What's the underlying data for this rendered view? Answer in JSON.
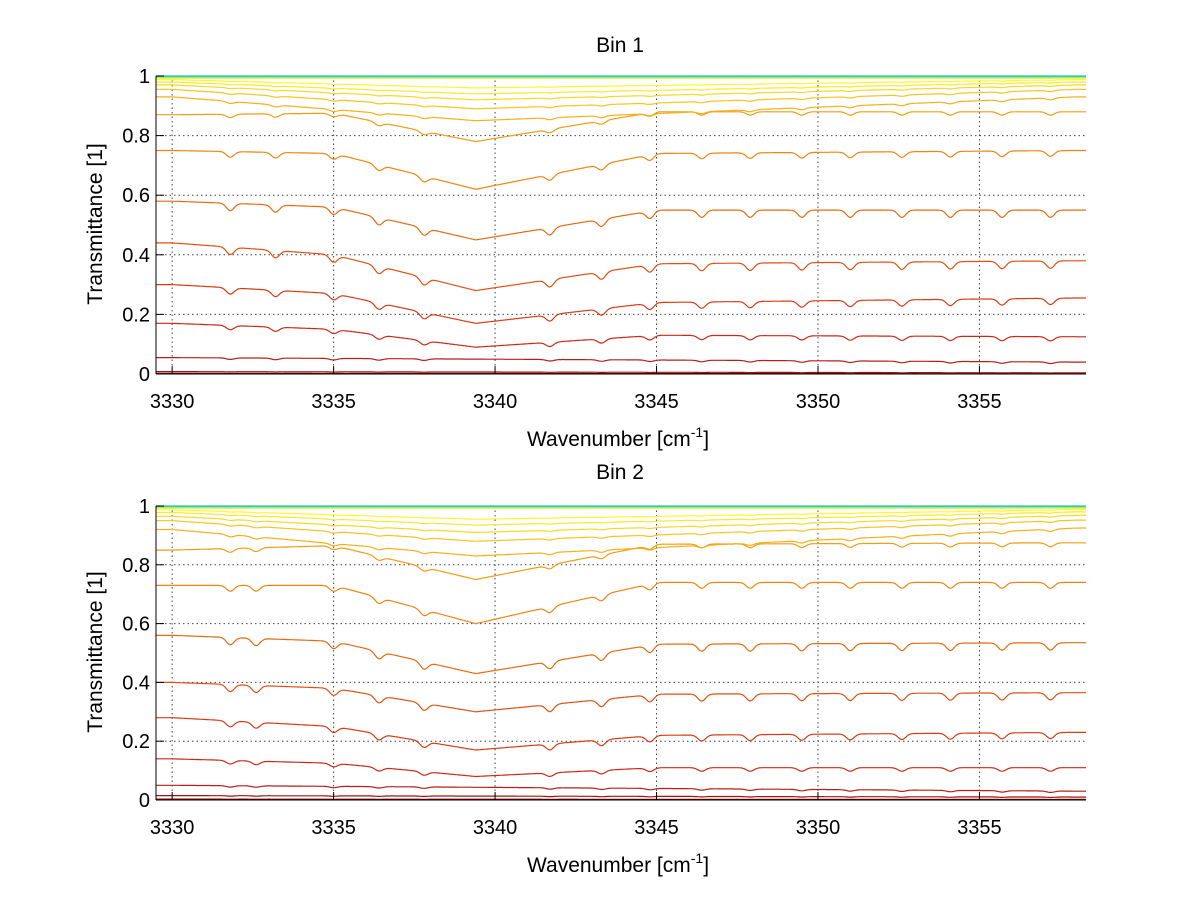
{
  "chart_data": [
    {
      "type": "line",
      "title": "Bin 1",
      "xlabel": "Wavenumber [cm",
      "xlabel_sup": "-1",
      "xlabel_close": "]",
      "ylabel": "Transmittance [1]",
      "xlim": [
        3329.5,
        3358.3
      ],
      "ylim": [
        0,
        1
      ],
      "xticks": [
        3330,
        3335,
        3340,
        3345,
        3350,
        3355
      ],
      "yticks": [
        0,
        0.2,
        0.4,
        0.6,
        0.8,
        1
      ],
      "xtick_labels": [
        "3330",
        "3335",
        "3340",
        "3345",
        "3350",
        "3355"
      ],
      "ytick_labels": [
        "0",
        "0.2",
        "0.4",
        "0.6",
        "0.8",
        "1"
      ],
      "grid": true,
      "series_colors": [
        "#8b0a0a",
        "#a31212",
        "#b81c1c",
        "#c92a18",
        "#d63b14",
        "#e05012",
        "#e86a10",
        "#ee8510",
        "#f29c12",
        "#f5b018",
        "#f8c41e",
        "#fad724",
        "#fce82a",
        "#fff52e",
        "#d8f236",
        "#80e868",
        "#30d4b0",
        "#20c0e0"
      ],
      "series": [
        {
          "values_at": {
            "3330": 0.002,
            "3358": 0.001
          }
        },
        {
          "values_at": {
            "3330": 0.008,
            "3358": 0.004
          }
        },
        {
          "values_at": {
            "3330": 0.055,
            "3358": 0.04
          }
        },
        {
          "values_at": {
            "3330": 0.17,
            "3335": 0.15,
            "3339.4": 0.09,
            "3345": 0.13,
            "3358": 0.125
          }
        },
        {
          "values_at": {
            "3330": 0.3,
            "3335": 0.27,
            "3339.4": 0.17,
            "3345": 0.24,
            "3358": 0.255
          }
        },
        {
          "values_at": {
            "3330": 0.44,
            "3335": 0.4,
            "3339.4": 0.28,
            "3345": 0.37,
            "3358": 0.38
          }
        },
        {
          "values_at": {
            "3330": 0.58,
            "3335": 0.56,
            "3339.4": 0.45,
            "3345": 0.55,
            "3358": 0.55
          }
        },
        {
          "values_at": {
            "3330": 0.75,
            "3335": 0.74,
            "3339.4": 0.62,
            "3345": 0.74,
            "3358": 0.75
          }
        },
        {
          "values_at": {
            "3330": 0.87,
            "3335": 0.875,
            "3339.4": 0.78,
            "3345": 0.88,
            "3358": 0.88
          }
        },
        {
          "values_at": {
            "3330": 0.93,
            "3339.4": 0.85,
            "3358": 0.93
          }
        },
        {
          "values_at": {
            "3330": 0.955,
            "3339.4": 0.89,
            "3358": 0.955
          }
        },
        {
          "values_at": {
            "3330": 0.97,
            "3339.4": 0.92,
            "3358": 0.97
          }
        },
        {
          "values_at": {
            "3330": 0.98,
            "3339.4": 0.94,
            "3358": 0.98
          }
        },
        {
          "values_at": {
            "3330": 0.988,
            "3339.4": 0.96,
            "3358": 0.988
          }
        },
        {
          "values_at": {
            "3330": 0.993,
            "3358": 0.993
          }
        },
        {
          "values_at": {
            "3330": 0.997,
            "3358": 0.997
          }
        },
        {
          "values_at": {
            "3330": 0.999,
            "3358": 0.999
          }
        },
        {
          "values_at": {
            "3330": 1.0,
            "3358": 1.0
          }
        }
      ],
      "dips": [
        3331.8,
        3333.2,
        3335.0,
        3336.4,
        3337.8,
        3339.4,
        3341.7,
        3343.3,
        3344.8,
        3346.4,
        3347.9,
        3349.5,
        3351.0,
        3352.6,
        3354.1,
        3355.7,
        3357.2
      ]
    },
    {
      "type": "line",
      "title": "Bin 2",
      "xlabel": "Wavenumber [cm",
      "xlabel_sup": "-1",
      "xlabel_close": "]",
      "ylabel": "Transmittance [1]",
      "xlim": [
        3329.5,
        3358.3
      ],
      "ylim": [
        0,
        1
      ],
      "xticks": [
        3330,
        3335,
        3340,
        3345,
        3350,
        3355
      ],
      "yticks": [
        0,
        0.2,
        0.4,
        0.6,
        0.8,
        1
      ],
      "xtick_labels": [
        "3330",
        "3335",
        "3340",
        "3345",
        "3350",
        "3355"
      ],
      "ytick_labels": [
        "0",
        "0.2",
        "0.4",
        "0.6",
        "0.8",
        "1"
      ],
      "grid": true,
      "series_colors": [
        "#8b0a0a",
        "#a31212",
        "#b81c1c",
        "#c92a18",
        "#d63b14",
        "#e05012",
        "#e86a10",
        "#ee8510",
        "#f29c12",
        "#f5b018",
        "#f8c41e",
        "#fad724",
        "#fce82a",
        "#fff52e",
        "#d8f236",
        "#80e868",
        "#30d4b0",
        "#20c0e0"
      ],
      "series": [
        {
          "values_at": {
            "3330": 0.003,
            "3358": 0.002
          }
        },
        {
          "values_at": {
            "3330": 0.015,
            "3358": 0.01
          }
        },
        {
          "values_at": {
            "3330": 0.05,
            "3358": 0.03
          }
        },
        {
          "values_at": {
            "3330": 0.14,
            "3335": 0.125,
            "3339.4": 0.08,
            "3345": 0.11,
            "3358": 0.11
          }
        },
        {
          "values_at": {
            "3330": 0.28,
            "3335": 0.25,
            "3339.4": 0.17,
            "3345": 0.22,
            "3358": 0.23
          }
        },
        {
          "values_at": {
            "3330": 0.4,
            "3335": 0.38,
            "3339.4": 0.3,
            "3345": 0.36,
            "3358": 0.365
          }
        },
        {
          "values_at": {
            "3330": 0.56,
            "3335": 0.54,
            "3339.4": 0.43,
            "3345": 0.53,
            "3358": 0.535
          }
        },
        {
          "values_at": {
            "3330": 0.73,
            "3335": 0.73,
            "3339.4": 0.6,
            "3345": 0.74,
            "3358": 0.74
          }
        },
        {
          "values_at": {
            "3330": 0.85,
            "3335": 0.865,
            "3339.4": 0.75,
            "3345": 0.87,
            "3358": 0.875
          }
        },
        {
          "values_at": {
            "3330": 0.92,
            "3339.4": 0.83,
            "3358": 0.925
          }
        },
        {
          "values_at": {
            "3330": 0.95,
            "3339.4": 0.88,
            "3358": 0.952
          }
        },
        {
          "values_at": {
            "3330": 0.965,
            "3339.4": 0.91,
            "3358": 0.968
          }
        },
        {
          "values_at": {
            "3330": 0.978,
            "3339.4": 0.935,
            "3358": 0.98
          }
        },
        {
          "values_at": {
            "3330": 0.987,
            "3339.4": 0.955,
            "3358": 0.988
          }
        },
        {
          "values_at": {
            "3330": 0.993,
            "3358": 0.993
          }
        },
        {
          "values_at": {
            "3330": 0.997,
            "3358": 0.997
          }
        },
        {
          "values_at": {
            "3330": 0.999,
            "3358": 0.999
          }
        },
        {
          "values_at": {
            "3330": 1.0,
            "3358": 1.0
          }
        }
      ],
      "dips": [
        3331.8,
        3332.6,
        3335.0,
        3336.4,
        3337.8,
        3339.4,
        3341.7,
        3343.3,
        3344.8,
        3346.4,
        3347.9,
        3349.5,
        3351.0,
        3352.6,
        3354.1,
        3355.7,
        3357.2
      ]
    }
  ]
}
